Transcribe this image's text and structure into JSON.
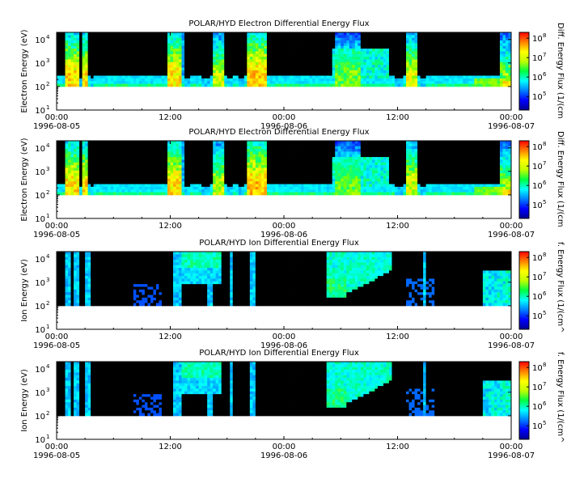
{
  "chart_data": [
    {
      "type": "heatmap",
      "title": "POLAR/HYD  Electron Differential Energy Flux",
      "ylabel": "Electron Energy (eV)",
      "colorbar_label": "Diff. Energy Flux (1/(cm",
      "species": "electron",
      "ylim": [
        10,
        20000
      ],
      "y_scale": "log",
      "y_ticks": [
        {
          "value": 10,
          "base": "10",
          "exp": "1"
        },
        {
          "value": 100,
          "base": "10",
          "exp": "2"
        },
        {
          "value": 1000,
          "base": "10",
          "exp": "3"
        },
        {
          "value": 10000,
          "base": "10",
          "exp": "4"
        }
      ],
      "x_ticks": [
        {
          "time": "00:00",
          "date": "1996-08-05"
        },
        {
          "time": "12:00",
          "date": ""
        },
        {
          "time": "00:00",
          "date": "1996-08-06"
        },
        {
          "time": "12:00",
          "date": ""
        },
        {
          "time": "00:00",
          "date": "1996-08-07"
        }
      ],
      "xlim": [
        "1996-08-05 00:00",
        "1996-08-07 00:00"
      ],
      "colorbar_ticks": [
        {
          "value": 100000,
          "base": "10",
          "exp": "5"
        },
        {
          "value": 1000000,
          "base": "10",
          "exp": "6"
        },
        {
          "value": 10000000,
          "base": "10",
          "exp": "7"
        },
        {
          "value": 100000000,
          "base": "10",
          "exp": "8"
        }
      ],
      "colorbar_range": [
        20000,
        200000000
      ],
      "data_energy_range_ev": [
        100,
        20000
      ],
      "grid": false
    },
    {
      "type": "heatmap",
      "title": "POLAR/HYD  Electron Differential Energy Flux",
      "ylabel": "Electron Energy (eV)",
      "colorbar_label": "Diff. Energy Flux (1/(cm",
      "species": "electron",
      "ylim": [
        10,
        20000
      ],
      "y_scale": "log",
      "y_ticks": [
        {
          "value": 10,
          "base": "10",
          "exp": "1"
        },
        {
          "value": 100,
          "base": "10",
          "exp": "2"
        },
        {
          "value": 1000,
          "base": "10",
          "exp": "3"
        },
        {
          "value": 10000,
          "base": "10",
          "exp": "4"
        }
      ],
      "x_ticks": [
        {
          "time": "00:00",
          "date": "1996-08-05"
        },
        {
          "time": "12:00",
          "date": ""
        },
        {
          "time": "00:00",
          "date": "1996-08-06"
        },
        {
          "time": "12:00",
          "date": ""
        },
        {
          "time": "00:00",
          "date": "1996-08-07"
        }
      ],
      "xlim": [
        "1996-08-05 00:00",
        "1996-08-07 00:00"
      ],
      "colorbar_ticks": [
        {
          "value": 100000,
          "base": "10",
          "exp": "5"
        },
        {
          "value": 1000000,
          "base": "10",
          "exp": "6"
        },
        {
          "value": 10000000,
          "base": "10",
          "exp": "7"
        },
        {
          "value": 100000000,
          "base": "10",
          "exp": "8"
        }
      ],
      "colorbar_range": [
        20000,
        200000000
      ],
      "data_energy_range_ev": [
        100,
        20000
      ],
      "grid": false
    },
    {
      "type": "heatmap",
      "title": "POLAR/HYD  Ion Differential Energy Flux",
      "ylabel": "Ion Energy (eV)",
      "colorbar_label": "f. Energy Flux (1/(cm^",
      "species": "ion",
      "ylim": [
        10,
        20000
      ],
      "y_scale": "log",
      "y_ticks": [
        {
          "value": 10,
          "base": "10",
          "exp": "1"
        },
        {
          "value": 100,
          "base": "10",
          "exp": "2"
        },
        {
          "value": 1000,
          "base": "10",
          "exp": "3"
        },
        {
          "value": 10000,
          "base": "10",
          "exp": "4"
        }
      ],
      "x_ticks": [
        {
          "time": "00:00",
          "date": "1996-08-05"
        },
        {
          "time": "12:00",
          "date": ""
        },
        {
          "time": "00:00",
          "date": "1996-08-06"
        },
        {
          "time": "12:00",
          "date": ""
        },
        {
          "time": "00:00",
          "date": "1996-08-07"
        }
      ],
      "xlim": [
        "1996-08-05 00:00",
        "1996-08-07 00:00"
      ],
      "colorbar_ticks": [
        {
          "value": 100000,
          "base": "10",
          "exp": "5"
        },
        {
          "value": 1000000,
          "base": "10",
          "exp": "6"
        },
        {
          "value": 10000000,
          "base": "10",
          "exp": "7"
        },
        {
          "value": 100000000,
          "base": "10",
          "exp": "8"
        }
      ],
      "colorbar_range": [
        20000,
        200000000
      ],
      "data_energy_range_ev": [
        100,
        20000
      ],
      "grid": false
    },
    {
      "type": "heatmap",
      "title": "POLAR/HYD  Ion Differential Energy Flux",
      "ylabel": "Ion Energy (eV)",
      "colorbar_label": "f. Energy Flux (1/(cm^",
      "species": "ion",
      "ylim": [
        10,
        20000
      ],
      "y_scale": "log",
      "y_ticks": [
        {
          "value": 10,
          "base": "10",
          "exp": "1"
        },
        {
          "value": 100,
          "base": "10",
          "exp": "2"
        },
        {
          "value": 1000,
          "base": "10",
          "exp": "3"
        },
        {
          "value": 10000,
          "base": "10",
          "exp": "4"
        }
      ],
      "x_ticks": [
        {
          "time": "00:00",
          "date": "1996-08-05"
        },
        {
          "time": "12:00",
          "date": ""
        },
        {
          "time": "00:00",
          "date": "1996-08-06"
        },
        {
          "time": "12:00",
          "date": ""
        },
        {
          "time": "00:00",
          "date": "1996-08-07"
        }
      ],
      "xlim": [
        "1996-08-05 00:00",
        "1996-08-07 00:00"
      ],
      "colorbar_ticks": [
        {
          "value": 100000,
          "base": "10",
          "exp": "5"
        },
        {
          "value": 1000000,
          "base": "10",
          "exp": "6"
        },
        {
          "value": 10000000,
          "base": "10",
          "exp": "7"
        },
        {
          "value": 100000000,
          "base": "10",
          "exp": "8"
        }
      ],
      "colorbar_range": [
        20000,
        200000000
      ],
      "data_energy_range_ev": [
        100,
        20000
      ],
      "grid": false
    }
  ]
}
